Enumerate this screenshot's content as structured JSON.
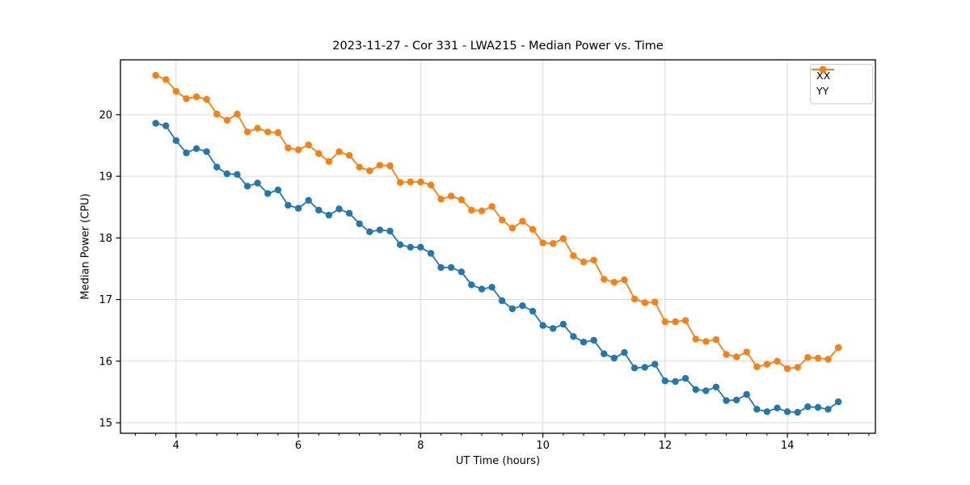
{
  "chart": {
    "title": "2023-11-27 - Cor 331 - LWA215 - Median Power vs. Time",
    "xlabel": "UT Time (hours)",
    "ylabel": "Median Power (CPU)"
  },
  "chart_data": {
    "type": "line",
    "title": "2023-11-27 - Cor 331 - LWA215 - Median Power vs. Time",
    "xlabel": "UT Time (hours)",
    "ylabel": "Median Power (CPU)",
    "grid": true,
    "legend_position": "upper right",
    "marker": "o",
    "xlim": [
      3.09,
      15.44
    ],
    "ylim": [
      14.83,
      20.89
    ],
    "x_major_ticks": [
      4,
      6,
      8,
      10,
      12,
      14
    ],
    "x_tick_labels": [
      "4",
      "6",
      "8",
      "10",
      "12",
      "14"
    ],
    "x_minor_step": 0.3333,
    "y_major_ticks": [
      15,
      16,
      17,
      18,
      19,
      20
    ],
    "y_tick_labels": [
      "15",
      "16",
      "17",
      "18",
      "19",
      "20"
    ],
    "grid_color": "#d9d9d9",
    "x": [
      3.667,
      3.833,
      4.0,
      4.167,
      4.333,
      4.5,
      4.667,
      4.833,
      5.0,
      5.167,
      5.333,
      5.5,
      5.667,
      5.833,
      6.0,
      6.167,
      6.333,
      6.5,
      6.667,
      6.833,
      7.0,
      7.167,
      7.333,
      7.5,
      7.667,
      7.833,
      8.0,
      8.167,
      8.333,
      8.5,
      8.667,
      8.833,
      9.0,
      9.167,
      9.333,
      9.5,
      9.667,
      9.833,
      10.0,
      10.167,
      10.333,
      10.5,
      10.667,
      10.833,
      11.0,
      11.167,
      11.333,
      11.5,
      11.667,
      11.833,
      12.0,
      12.167,
      12.333,
      12.5,
      12.667,
      12.833,
      13.0,
      13.167,
      13.333,
      13.5,
      13.667,
      13.833,
      14.0,
      14.167,
      14.333,
      14.5,
      14.667,
      14.833
    ],
    "series": [
      {
        "name": "XX",
        "color": "#1f77b4",
        "values": [
          19.86,
          19.82,
          19.58,
          19.38,
          19.45,
          19.4,
          19.15,
          19.04,
          19.03,
          18.84,
          18.89,
          18.72,
          18.78,
          18.53,
          18.48,
          18.61,
          18.45,
          18.37,
          18.47,
          18.4,
          18.23,
          18.1,
          18.13,
          18.11,
          17.89,
          17.85,
          17.85,
          17.75,
          17.52,
          17.52,
          17.45,
          17.24,
          17.17,
          17.2,
          16.98,
          16.85,
          16.9,
          16.81,
          16.58,
          16.53,
          16.6,
          16.4,
          16.31,
          16.34,
          16.12,
          16.05,
          16.14,
          15.89,
          15.9,
          15.95,
          15.68,
          15.67,
          15.72,
          15.54,
          15.52,
          15.58,
          15.36,
          15.37,
          15.46,
          15.22,
          15.18,
          15.24,
          15.18,
          15.17,
          15.26,
          15.25,
          15.22,
          15.34
        ]
      },
      {
        "name": "YY",
        "color": "#ff7f0e",
        "values": [
          20.64,
          20.57,
          20.38,
          20.26,
          20.29,
          20.25,
          20.01,
          19.91,
          20.01,
          19.72,
          19.78,
          19.72,
          19.71,
          19.46,
          19.43,
          19.51,
          19.37,
          19.24,
          19.4,
          19.34,
          19.15,
          19.09,
          19.18,
          19.17,
          18.9,
          18.91,
          18.91,
          18.86,
          18.63,
          18.68,
          18.62,
          18.45,
          18.44,
          18.51,
          18.29,
          18.16,
          18.27,
          18.14,
          17.92,
          17.91,
          17.99,
          17.71,
          17.61,
          17.64,
          17.33,
          17.28,
          17.32,
          17.01,
          16.95,
          16.96,
          16.64,
          16.64,
          16.66,
          16.36,
          16.32,
          16.35,
          16.11,
          16.07,
          16.15,
          15.91,
          15.95,
          16.0,
          15.88,
          15.9,
          16.06,
          16.05,
          16.03,
          16.22
        ]
      }
    ]
  }
}
